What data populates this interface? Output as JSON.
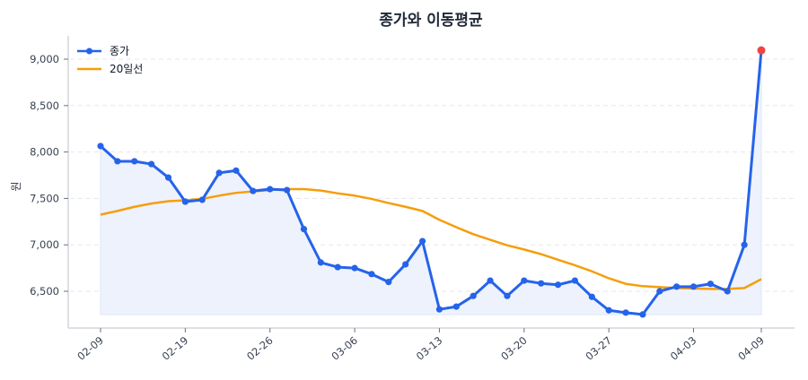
{
  "chart_data": {
    "type": "line",
    "title": "종가와 이동평균",
    "xlabel": "",
    "ylabel": "원",
    "ylim": [
      6150,
      9230
    ],
    "yticks": [
      6500,
      7000,
      7500,
      8000,
      8500,
      9000
    ],
    "ytick_labels": [
      "6,500",
      "7,000",
      "7,500",
      "8,000",
      "8,500",
      "9,000"
    ],
    "xtick_labels": [
      "02-09",
      "02-19",
      "02-26",
      "03-06",
      "03-13",
      "03-20",
      "03-27",
      "04-03",
      "04-09"
    ],
    "xtick_indices": [
      0,
      5,
      10,
      15,
      20,
      25,
      30,
      35,
      39
    ],
    "grid": true,
    "legend_position": "upper left",
    "series": [
      {
        "name": "종가",
        "color": "#2563eb",
        "marker": "circle",
        "fill": "#eef2fc",
        "values": [
          8064,
          7900,
          7900,
          7870,
          7725,
          7465,
          7485,
          7775,
          7800,
          7580,
          7600,
          7590,
          7170,
          6810,
          6760,
          6750,
          6685,
          6600,
          6790,
          7040,
          6305,
          6335,
          6450,
          6615,
          6450,
          6615,
          6585,
          6570,
          6615,
          6440,
          6295,
          6270,
          6250,
          6500,
          6550,
          6550,
          6580,
          6500,
          7000,
          9095
        ]
      },
      {
        "name": "20일선",
        "color": "#f59e0b",
        "marker": "none",
        "values": [
          7325,
          7365,
          7410,
          7445,
          7470,
          7480,
          7495,
          7530,
          7560,
          7575,
          7590,
          7600,
          7600,
          7585,
          7555,
          7530,
          7495,
          7450,
          7410,
          7365,
          7270,
          7190,
          7115,
          7055,
          6995,
          6950,
          6900,
          6840,
          6780,
          6715,
          6640,
          6580,
          6555,
          6545,
          6535,
          6530,
          6525,
          6525,
          6535,
          6630
        ]
      }
    ],
    "highlight_point": {
      "index": 39,
      "value": 9095,
      "color": "#ef4444"
    }
  },
  "legend": {
    "items": [
      {
        "label": "종가",
        "color": "#2563eb"
      },
      {
        "label": "20일선",
        "color": "#f59e0b"
      }
    ]
  }
}
